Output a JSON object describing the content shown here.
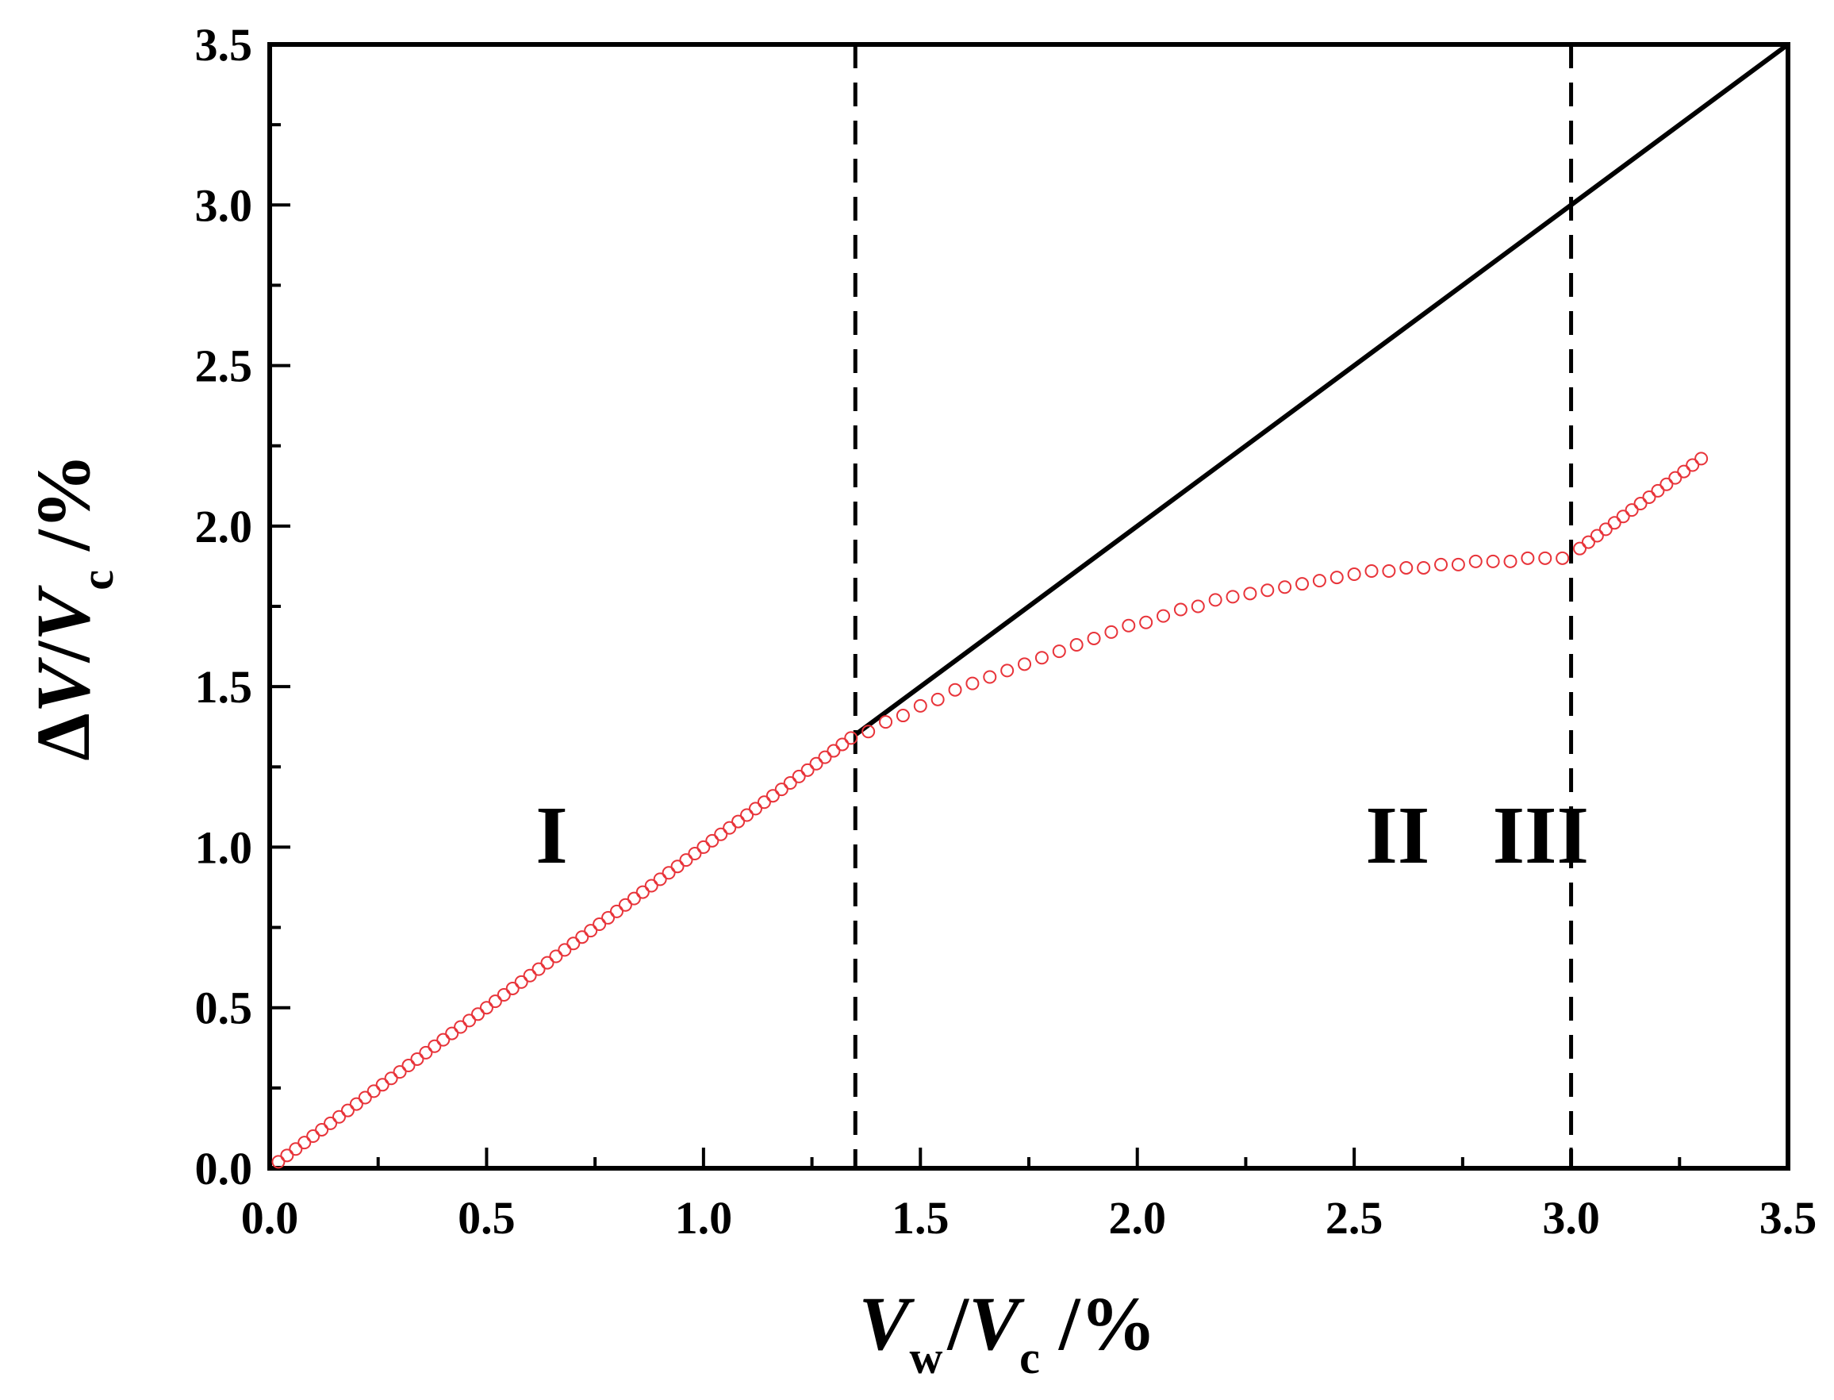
{
  "chart_data": {
    "type": "scatter",
    "xlim": [
      0.0,
      3.5
    ],
    "ylim": [
      0.0,
      3.5
    ],
    "x_ticks": [
      "0.0",
      "0.5",
      "1.0",
      "1.5",
      "2.0",
      "2.5",
      "3.0",
      "3.5"
    ],
    "y_ticks": [
      "0.0",
      "0.5",
      "1.0",
      "1.5",
      "2.0",
      "2.5",
      "3.0",
      "3.5"
    ],
    "xlabel": {
      "v1": "V",
      "sub1": "w",
      "sep": "/",
      "v2": "V",
      "sub2": "c",
      "unit": " /%"
    },
    "ylabel": {
      "delta": "Δ",
      "v1": "V",
      "sep": "/",
      "v2": "V",
      "sub2": "c",
      "unit": " /%"
    },
    "grid": false,
    "colors": {
      "measured": "#e8343a",
      "reference_line": "#000000",
      "axes": "#000000"
    },
    "regions": [
      {
        "label": "I",
        "x": 0.65
      },
      {
        "label": "II",
        "x": 2.6
      },
      {
        "label": "III",
        "x": 2.93
      }
    ],
    "region_label_y": 1.04,
    "boundaries": [
      1.35,
      3.0
    ],
    "reference_line": {
      "x": [
        1.35,
        3.5
      ],
      "y": [
        1.35,
        3.5
      ]
    },
    "series": [
      {
        "marker": "open-circle",
        "points": [
          [
            0.02,
            0.02
          ],
          [
            0.04,
            0.04
          ],
          [
            0.06,
            0.06
          ],
          [
            0.08,
            0.08
          ],
          [
            0.1,
            0.1
          ],
          [
            0.12,
            0.12
          ],
          [
            0.14,
            0.14
          ],
          [
            0.16,
            0.16
          ],
          [
            0.18,
            0.18
          ],
          [
            0.2,
            0.2
          ],
          [
            0.22,
            0.22
          ],
          [
            0.24,
            0.24
          ],
          [
            0.26,
            0.26
          ],
          [
            0.28,
            0.28
          ],
          [
            0.3,
            0.3
          ],
          [
            0.32,
            0.32
          ],
          [
            0.34,
            0.34
          ],
          [
            0.36,
            0.36
          ],
          [
            0.38,
            0.38
          ],
          [
            0.4,
            0.4
          ],
          [
            0.42,
            0.42
          ],
          [
            0.44,
            0.44
          ],
          [
            0.46,
            0.46
          ],
          [
            0.48,
            0.48
          ],
          [
            0.5,
            0.5
          ],
          [
            0.52,
            0.52
          ],
          [
            0.54,
            0.54
          ],
          [
            0.56,
            0.56
          ],
          [
            0.58,
            0.58
          ],
          [
            0.6,
            0.6
          ],
          [
            0.62,
            0.62
          ],
          [
            0.64,
            0.64
          ],
          [
            0.66,
            0.66
          ],
          [
            0.68,
            0.68
          ],
          [
            0.7,
            0.7
          ],
          [
            0.72,
            0.72
          ],
          [
            0.74,
            0.74
          ],
          [
            0.76,
            0.76
          ],
          [
            0.78,
            0.78
          ],
          [
            0.8,
            0.8
          ],
          [
            0.82,
            0.82
          ],
          [
            0.84,
            0.84
          ],
          [
            0.86,
            0.86
          ],
          [
            0.88,
            0.88
          ],
          [
            0.9,
            0.9
          ],
          [
            0.92,
            0.92
          ],
          [
            0.94,
            0.94
          ],
          [
            0.96,
            0.96
          ],
          [
            0.98,
            0.98
          ],
          [
            1.0,
            1.0
          ],
          [
            1.02,
            1.02
          ],
          [
            1.04,
            1.04
          ],
          [
            1.06,
            1.06
          ],
          [
            1.08,
            1.08
          ],
          [
            1.1,
            1.1
          ],
          [
            1.12,
            1.12
          ],
          [
            1.14,
            1.14
          ],
          [
            1.16,
            1.16
          ],
          [
            1.18,
            1.18
          ],
          [
            1.2,
            1.2
          ],
          [
            1.22,
            1.22
          ],
          [
            1.24,
            1.24
          ],
          [
            1.26,
            1.26
          ],
          [
            1.28,
            1.28
          ],
          [
            1.3,
            1.3
          ],
          [
            1.32,
            1.32
          ],
          [
            1.34,
            1.34
          ],
          [
            1.38,
            1.36
          ],
          [
            1.42,
            1.39
          ],
          [
            1.46,
            1.41
          ],
          [
            1.5,
            1.44
          ],
          [
            1.54,
            1.46
          ],
          [
            1.58,
            1.49
          ],
          [
            1.62,
            1.51
          ],
          [
            1.66,
            1.53
          ],
          [
            1.7,
            1.55
          ],
          [
            1.74,
            1.57
          ],
          [
            1.78,
            1.59
          ],
          [
            1.82,
            1.61
          ],
          [
            1.86,
            1.63
          ],
          [
            1.9,
            1.65
          ],
          [
            1.94,
            1.67
          ],
          [
            1.98,
            1.69
          ],
          [
            2.02,
            1.7
          ],
          [
            2.06,
            1.72
          ],
          [
            2.1,
            1.74
          ],
          [
            2.14,
            1.75
          ],
          [
            2.18,
            1.77
          ],
          [
            2.22,
            1.78
          ],
          [
            2.26,
            1.79
          ],
          [
            2.3,
            1.8
          ],
          [
            2.34,
            1.81
          ],
          [
            2.38,
            1.82
          ],
          [
            2.42,
            1.83
          ],
          [
            2.46,
            1.84
          ],
          [
            2.5,
            1.85
          ],
          [
            2.54,
            1.86
          ],
          [
            2.58,
            1.86
          ],
          [
            2.62,
            1.87
          ],
          [
            2.66,
            1.87
          ],
          [
            2.7,
            1.88
          ],
          [
            2.74,
            1.88
          ],
          [
            2.78,
            1.89
          ],
          [
            2.82,
            1.89
          ],
          [
            2.86,
            1.89
          ],
          [
            2.9,
            1.9
          ],
          [
            2.94,
            1.9
          ],
          [
            2.98,
            1.9
          ],
          [
            3.02,
            1.93
          ],
          [
            3.04,
            1.95
          ],
          [
            3.06,
            1.97
          ],
          [
            3.08,
            1.99
          ],
          [
            3.1,
            2.01
          ],
          [
            3.12,
            2.03
          ],
          [
            3.14,
            2.05
          ],
          [
            3.16,
            2.07
          ],
          [
            3.18,
            2.09
          ],
          [
            3.2,
            2.11
          ],
          [
            3.22,
            2.13
          ],
          [
            3.24,
            2.15
          ],
          [
            3.26,
            2.17
          ],
          [
            3.28,
            2.19
          ],
          [
            3.3,
            2.21
          ]
        ]
      }
    ]
  }
}
